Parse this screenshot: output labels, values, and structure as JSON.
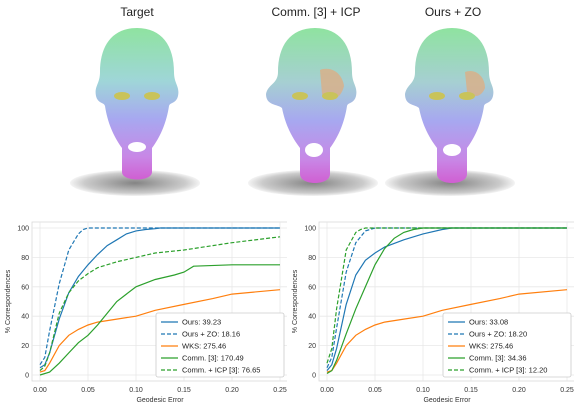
{
  "panels": [
    {
      "title": "Target"
    },
    {
      "title": "Comm. [3] + ICP"
    },
    {
      "title": "Ours + ZO"
    }
  ],
  "chart_data": [
    {
      "type": "line",
      "xlabel": "Geodesic Error",
      "ylabel": "% Correspondences",
      "xlim": [
        0,
        0.25
      ],
      "ylim": [
        0,
        100
      ],
      "xticks": [
        "0.00",
        "0.05",
        "0.10",
        "0.15",
        "0.20",
        "0.25"
      ],
      "yticks": [
        "0",
        "20",
        "40",
        "60",
        "80",
        "100"
      ],
      "grid": true,
      "legend_position": "bottom-right",
      "series": [
        {
          "name": "Ours: 39.23",
          "color": "#1f77b4",
          "dash": false,
          "x": [
            0,
            0.005,
            0.01,
            0.02,
            0.03,
            0.04,
            0.05,
            0.06,
            0.07,
            0.08,
            0.09,
            0.1,
            0.11,
            0.12,
            0.125,
            0.25
          ],
          "y": [
            5,
            7,
            15,
            38,
            56,
            67,
            75,
            82,
            88,
            92,
            96,
            98,
            99,
            99.5,
            100,
            100
          ]
        },
        {
          "name": "Ours + ZO: 18.16",
          "color": "#1f77b4",
          "dash": true,
          "x": [
            0,
            0.005,
            0.01,
            0.02,
            0.03,
            0.04,
            0.045,
            0.05,
            0.25
          ],
          "y": [
            7,
            12,
            30,
            62,
            85,
            96,
            99,
            100,
            100
          ]
        },
        {
          "name": "WKS: 275.46",
          "color": "#ff7f0e",
          "dash": false,
          "x": [
            0,
            0.005,
            0.01,
            0.02,
            0.03,
            0.04,
            0.05,
            0.06,
            0.08,
            0.1,
            0.12,
            0.15,
            0.18,
            0.2,
            0.25
          ],
          "y": [
            2,
            3,
            8,
            20,
            27,
            31,
            34,
            36,
            38,
            40,
            44,
            48,
            52,
            55,
            58
          ]
        },
        {
          "name": "Comm. [3]: 170.49",
          "color": "#2ca02c",
          "dash": false,
          "x": [
            0,
            0.01,
            0.02,
            0.03,
            0.04,
            0.05,
            0.06,
            0.07,
            0.08,
            0.09,
            0.1,
            0.12,
            0.14,
            0.15,
            0.16,
            0.2,
            0.25
          ],
          "y": [
            0,
            2,
            8,
            15,
            22,
            27,
            34,
            42,
            50,
            55,
            60,
            65,
            68,
            70,
            74,
            75,
            75
          ]
        },
        {
          "name": "Comm. + ICP [3]: 76.65",
          "color": "#2ca02c",
          "dash": true,
          "x": [
            0,
            0.005,
            0.01,
            0.02,
            0.03,
            0.04,
            0.05,
            0.06,
            0.08,
            0.1,
            0.12,
            0.15,
            0.18,
            0.2,
            0.25
          ],
          "y": [
            3,
            6,
            15,
            42,
            56,
            64,
            69,
            73,
            77,
            80,
            83,
            85,
            88,
            90,
            94
          ]
        }
      ]
    },
    {
      "type": "line",
      "xlabel": "Geodesic Error",
      "ylabel": "% Correspondences",
      "xlim": [
        0,
        0.25
      ],
      "ylim": [
        0,
        100
      ],
      "xticks": [
        "0.00",
        "0.05",
        "0.10",
        "0.15",
        "0.20",
        "0.25"
      ],
      "yticks": [
        "0",
        "20",
        "40",
        "60",
        "80",
        "100"
      ],
      "grid": true,
      "legend_position": "bottom-right",
      "series": [
        {
          "name": "Ours: 33.08",
          "color": "#1f77b4",
          "dash": false,
          "x": [
            0,
            0.005,
            0.01,
            0.02,
            0.03,
            0.04,
            0.05,
            0.06,
            0.08,
            0.1,
            0.12,
            0.13,
            0.25
          ],
          "y": [
            3,
            7,
            18,
            48,
            68,
            78,
            83,
            87,
            92,
            96,
            99,
            100,
            100
          ]
        },
        {
          "name": "Ours + ZO: 18.20",
          "color": "#1f77b4",
          "dash": true,
          "x": [
            0,
            0.005,
            0.01,
            0.02,
            0.03,
            0.04,
            0.05,
            0.25
          ],
          "y": [
            5,
            12,
            32,
            70,
            90,
            98,
            100,
            100
          ]
        },
        {
          "name": "WKS: 275.46",
          "color": "#ff7f0e",
          "dash": false,
          "x": [
            0,
            0.005,
            0.01,
            0.02,
            0.03,
            0.04,
            0.05,
            0.06,
            0.08,
            0.1,
            0.12,
            0.15,
            0.18,
            0.2,
            0.25
          ],
          "y": [
            2,
            3,
            8,
            20,
            27,
            31,
            34,
            36,
            38,
            40,
            44,
            48,
            52,
            55,
            58
          ]
        },
        {
          "name": "Comm. [3]: 34.36",
          "color": "#2ca02c",
          "dash": false,
          "x": [
            0,
            0.005,
            0.01,
            0.02,
            0.03,
            0.04,
            0.05,
            0.06,
            0.07,
            0.08,
            0.09,
            0.1,
            0.25
          ],
          "y": [
            1,
            3,
            10,
            28,
            45,
            60,
            75,
            86,
            93,
            97,
            99,
            100,
            100
          ]
        },
        {
          "name": "Comm. + ICP [3]: 12.20",
          "color": "#2ca02c",
          "dash": true,
          "x": [
            0,
            0.005,
            0.01,
            0.02,
            0.03,
            0.035,
            0.04,
            0.25
          ],
          "y": [
            8,
            18,
            45,
            85,
            97,
            99,
            100,
            100
          ]
        }
      ]
    }
  ]
}
